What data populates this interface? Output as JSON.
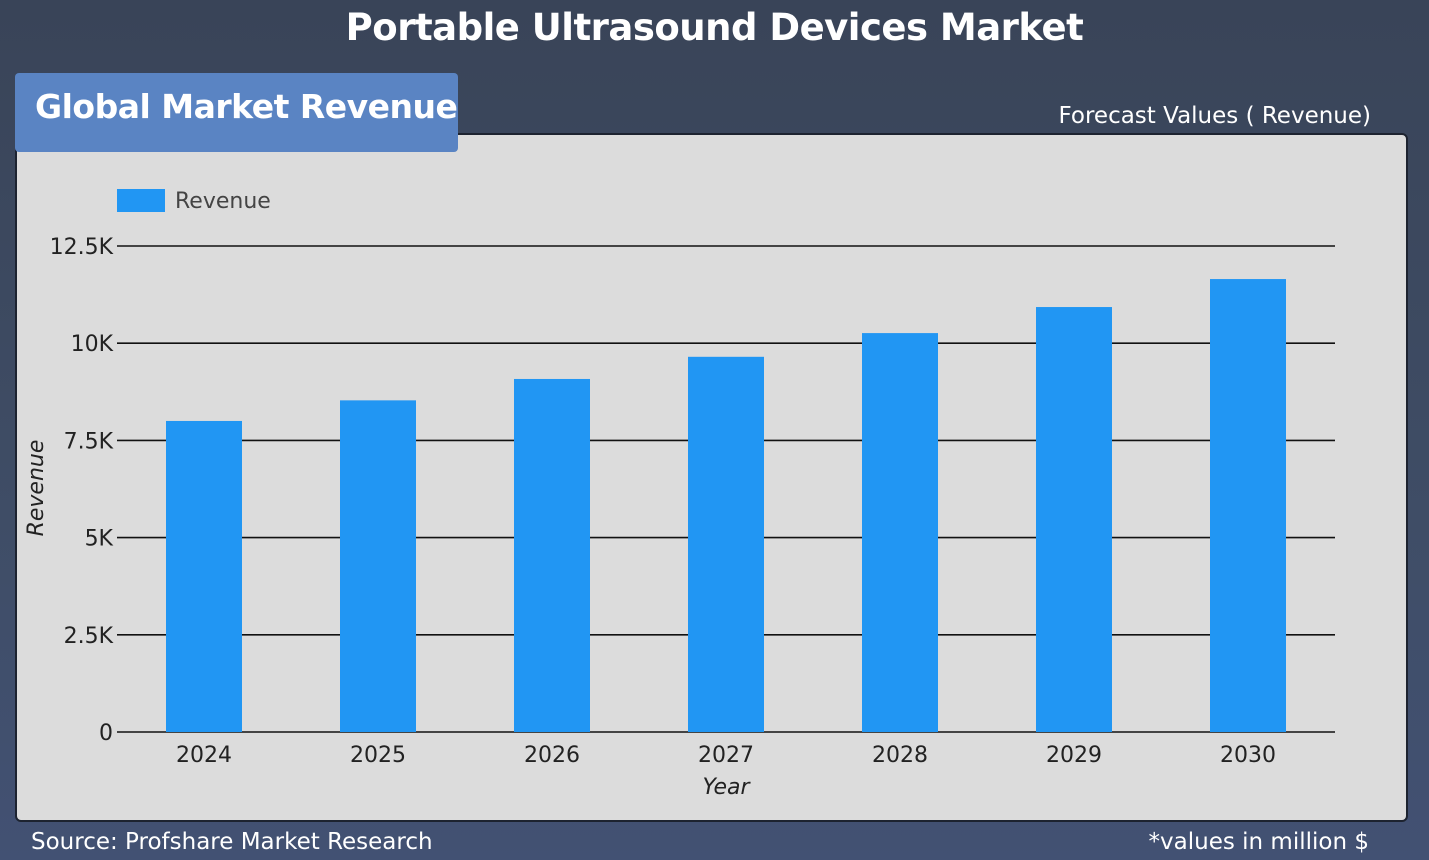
{
  "header": {
    "title": "Portable Ultrasound Devices Market",
    "badge": "Global Market Revenue",
    "forecast_label": "Forecast Values ( Revenue)"
  },
  "footer": {
    "source": "Source: Profshare Market Research",
    "units": "*values in million $"
  },
  "colors": {
    "bar": "#2196f3",
    "badge": "#5a84c3",
    "panel": "#dcdcdc",
    "background": "#3d4960"
  },
  "chart_data": {
    "type": "bar",
    "categories": [
      "2024",
      "2025",
      "2026",
      "2027",
      "2028",
      "2029",
      "2030"
    ],
    "series": [
      {
        "name": "Revenue",
        "values": [
          8000,
          8530,
          9080,
          9650,
          10260,
          10930,
          11650
        ]
      }
    ],
    "xlabel": "Year",
    "ylabel": "Revenue",
    "ylim": [
      0,
      12500
    ],
    "yticks": [
      0,
      2500,
      5000,
      7500,
      10000,
      12500
    ],
    "ytick_labels": [
      "0",
      "2.5K",
      "5K",
      "7.5K",
      "10K",
      "12.5K"
    ],
    "grid": true,
    "legend": "top-left"
  }
}
